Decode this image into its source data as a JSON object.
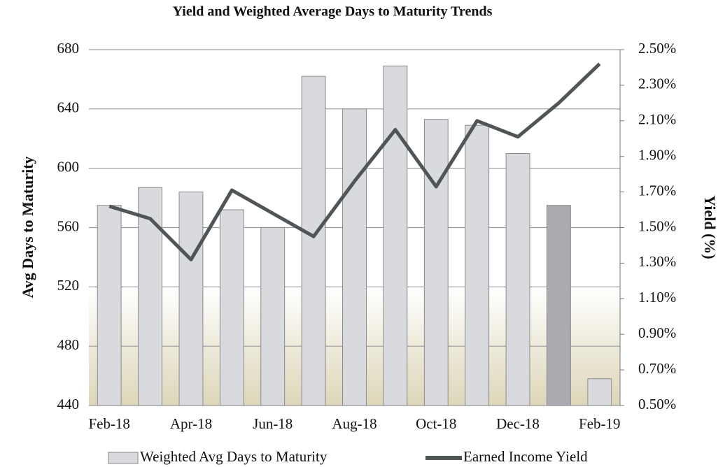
{
  "chart_data": {
    "type": "combo",
    "title": "Yield and Weighted Average Days to Maturity Trends",
    "ylabel": "Avg Days to Maturity",
    "y2label": "Yield (%)",
    "categories": [
      "Feb-18",
      null,
      "Apr-18",
      null,
      "Jun-18",
      null,
      "Aug-18",
      null,
      "Oct-18",
      null,
      "Dec-18",
      null,
      "Feb-19"
    ],
    "series": [
      {
        "name": "Weighted Avg Days to Maturity",
        "type": "bar",
        "color": "#d9dade",
        "colors": [
          "#d9dade",
          "#d9dade",
          "#d9dade",
          "#d9dade",
          "#d9dade",
          "#d9dade",
          "#d9dade",
          "#d9dade",
          "#d9dade",
          "#d9dade",
          "#d9dade",
          "#a9abb0",
          "#d9dade"
        ],
        "values": [
          575,
          587,
          584,
          572,
          560,
          662,
          640,
          669,
          633,
          629,
          610,
          575,
          458
        ]
      },
      {
        "name": "Earned Income Yield",
        "type": "line",
        "axis": "y2",
        "color": "#505558",
        "values": [
          1.62,
          1.55,
          1.32,
          1.71,
          1.58,
          1.45,
          1.76,
          2.05,
          1.73,
          2.1,
          2.01,
          2.2,
          2.42
        ]
      }
    ],
    "ylim": [
      440,
      680
    ],
    "yticks": [
      440,
      480,
      520,
      560,
      600,
      640,
      680
    ],
    "y2lim": [
      0.5,
      2.5
    ],
    "y2ticks": [
      {
        "value": 0.5,
        "label": "0.50%"
      },
      {
        "value": 0.7,
        "label": "0.70%"
      },
      {
        "value": 0.9,
        "label": "0.90%"
      },
      {
        "value": 1.1,
        "label": "1.10%"
      },
      {
        "value": 1.3,
        "label": "1.30%"
      },
      {
        "value": 1.5,
        "label": "1.50%"
      },
      {
        "value": 1.7,
        "label": "1.70%"
      },
      {
        "value": 1.9,
        "label": "1.90%"
      },
      {
        "value": 2.1,
        "label": "2.10%"
      },
      {
        "value": 2.3,
        "label": "2.30%"
      },
      {
        "value": 2.5,
        "label": "2.50%"
      }
    ],
    "grid": true,
    "legend": "bottom"
  }
}
